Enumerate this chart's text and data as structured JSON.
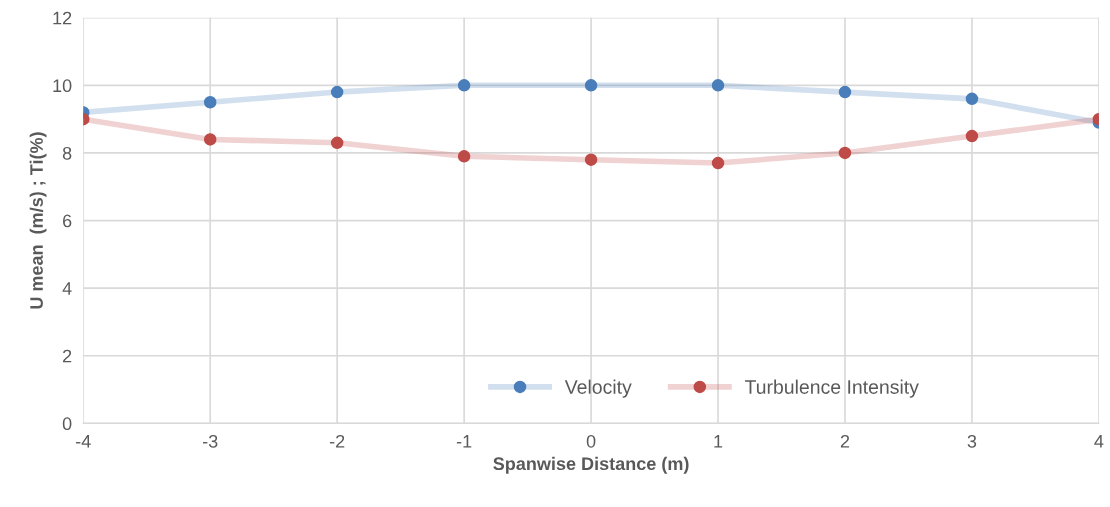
{
  "chart_data": {
    "type": "line",
    "xlabel": "Spanwise Distance (m)",
    "ylabel": "U mean  (m/s) ; Ti(%)",
    "x": [
      -4,
      -3,
      -2,
      -1,
      0,
      1,
      2,
      3,
      4
    ],
    "series": [
      {
        "name": "Velocity",
        "color": "#4a7ebb",
        "values": [
          9.2,
          9.5,
          9.8,
          10,
          10,
          10,
          9.8,
          9.6,
          8.9
        ]
      },
      {
        "name": "Turbulence Intensity",
        "color": "#be4b48",
        "values": [
          9.0,
          8.4,
          8.3,
          7.9,
          7.8,
          7.7,
          8.0,
          8.5,
          9.0
        ]
      }
    ],
    "xlim": [
      -4,
      4
    ],
    "xticks": [
      -4,
      -3,
      -2,
      -1,
      0,
      1,
      2,
      3,
      4
    ],
    "ylim": [
      0,
      12
    ],
    "yticks": [
      0,
      2,
      4,
      6,
      8,
      10,
      12
    ],
    "grid": true,
    "legend": "bottom right",
    "marker": "circle",
    "line_style": "solid"
  }
}
